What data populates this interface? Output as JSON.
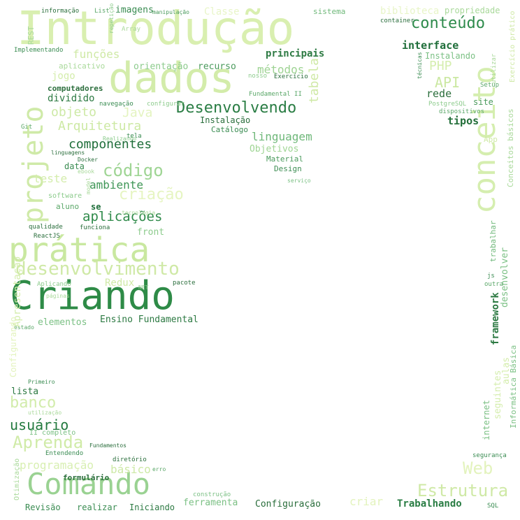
{
  "words": [
    {
      "text": "Introdução",
      "color": "#d9efb0"
    },
    {
      "text": "dados",
      "color": "#d3ecaa"
    },
    {
      "text": "Criando",
      "color": "#2e8b47"
    },
    {
      "text": "prática",
      "color": "#c9e8a0"
    },
    {
      "text": "Comando",
      "color": "#9ad292"
    },
    {
      "text": "projeto",
      "color": "#cfeaa8"
    },
    {
      "text": "conceito",
      "color": "#d5eeaf"
    },
    {
      "text": "desenvolvimento",
      "color": "#cfe9a6"
    },
    {
      "text": "Desenvolvendo",
      "color": "#2a7d44"
    },
    {
      "text": "código",
      "color": "#9fd594"
    },
    {
      "text": "conteúdo",
      "color": "#2e8b4c"
    },
    {
      "text": "banco",
      "color": "#d2ecab"
    },
    {
      "text": "Aprenda",
      "color": "#d0eba8"
    },
    {
      "text": "Estrutura",
      "color": "#cfe9a6"
    },
    {
      "text": "Web",
      "color": "#e3f3bd"
    },
    {
      "text": "usuário",
      "color": "#237a3f"
    },
    {
      "text": "criação",
      "color": "#e6f5c2"
    },
    {
      "text": "aplicações",
      "color": "#2f8a4a"
    },
    {
      "text": "componentes",
      "color": "#1f6e3a"
    },
    {
      "text": "ambiente",
      "color": "#3f9657"
    },
    {
      "text": "Arquitetura",
      "color": "#cde9a4"
    },
    {
      "text": "objeto",
      "color": "#cde9a6"
    },
    {
      "text": "Java",
      "color": "#e4f4c0"
    },
    {
      "text": "funções",
      "color": "#cfe9a6"
    },
    {
      "text": "métodos",
      "color": "#9ed393"
    },
    {
      "text": "linguagem",
      "color": "#6fb87a"
    },
    {
      "text": "interface",
      "color": "#1f6e3a"
    },
    {
      "text": "API",
      "color": "#cbe8a2"
    },
    {
      "text": "PHP",
      "color": "#d5eeaf"
    },
    {
      "text": "tipos",
      "color": "#236f3a"
    },
    {
      "text": "rede",
      "color": "#2b6e3c"
    },
    {
      "text": "site",
      "color": "#4a9a5c"
    },
    {
      "text": "principais",
      "color": "#2e7b44"
    },
    {
      "text": "recurso",
      "color": "#4a9a5c"
    },
    {
      "text": "orientação",
      "color": "#8ccb8c"
    },
    {
      "text": "aplicativo",
      "color": "#a9d99a"
    },
    {
      "text": "jogo",
      "color": "#d4edac"
    },
    {
      "text": "computadores",
      "color": "#2d6f3e"
    },
    {
      "text": "dividido",
      "color": "#2d7a43"
    },
    {
      "text": "Instalação",
      "color": "#2a6e3c"
    },
    {
      "text": "Catálogo",
      "color": "#3a8c52"
    },
    {
      "text": "Objetivos",
      "color": "#9fd594"
    },
    {
      "text": "Material",
      "color": "#4a9a5c"
    },
    {
      "text": "Design",
      "color": "#3f8f55"
    },
    {
      "text": "teste",
      "color": "#d4edac"
    },
    {
      "text": "data",
      "color": "#3a8c52"
    },
    {
      "text": "aluno",
      "color": "#5aa768"
    },
    {
      "text": "se",
      "color": "#1f6e3a"
    },
    {
      "text": "front",
      "color": "#8ccb8c"
    },
    {
      "text": "Redux",
      "color": "#cfe9a6"
    },
    {
      "text": "elementos",
      "color": "#7bc084"
    },
    {
      "text": "Ensino Fundamental",
      "color": "#2d7a43"
    },
    {
      "text": "lista",
      "color": "#2d7a43"
    },
    {
      "text": "programação",
      "color": "#d8efb2"
    },
    {
      "text": "básico",
      "color": "#cde9a6"
    },
    {
      "text": "formulário",
      "color": "#2a6e3c"
    },
    {
      "text": "Revisão",
      "color": "#3a8c52"
    },
    {
      "text": "realizar",
      "color": "#3a8c52"
    },
    {
      "text": "Iniciando",
      "color": "#2d7a43"
    },
    {
      "text": "ferramenta",
      "color": "#7bc084"
    },
    {
      "text": "Configuração",
      "color": "#2a6e3c"
    },
    {
      "text": "criar",
      "color": "#e3f3bd"
    },
    {
      "text": "Trabalhando",
      "color": "#2a7d44"
    },
    {
      "text": "imagens",
      "color": "#3a8c52"
    },
    {
      "text": "sistema",
      "color": "#6fb87a"
    },
    {
      "text": "biblioteca",
      "color": "#e8f5c8"
    },
    {
      "text": "propriedade",
      "color": "#a9d99a"
    },
    {
      "text": "tabela",
      "color": "#cfe9a6"
    },
    {
      "text": "framework",
      "color": "#2d7a43"
    },
    {
      "text": "desenvolver",
      "color": "#7bc084"
    },
    {
      "text": "trabalhar",
      "color": "#6fb87a"
    },
    {
      "text": "internet",
      "color": "#7bc084"
    },
    {
      "text": "seguintes",
      "color": "#d4edac"
    },
    {
      "text": "aulas",
      "color": "#d4edac"
    },
    {
      "text": "Informática Básica",
      "color": "#7bc084"
    },
    {
      "text": "Conceitos básicos",
      "color": "#a9d99a"
    },
    {
      "text": "Exercício prático",
      "color": "#cfe9a6"
    },
    {
      "text": "Classe",
      "color": "#e8f5c8"
    },
    {
      "text": "REST",
      "color": "#a9d99a"
    },
    {
      "text": "Implementando",
      "color": "#3a8c52"
    },
    {
      "text": "informação",
      "color": "#2a6e3c"
    },
    {
      "text": "List",
      "color": "#5aa768"
    },
    {
      "text": "Array",
      "color": "#a9d99a"
    },
    {
      "text": "manipulação",
      "color": "#4a9a5c"
    },
    {
      "text": "Instalando",
      "color": "#7bc084"
    },
    {
      "text": "Fundamental II",
      "color": "#5aa768"
    },
    {
      "text": "nosso",
      "color": "#8ccb8c"
    },
    {
      "text": "Exercício",
      "color": "#2a6e3c"
    },
    {
      "text": "Setup",
      "color": "#5aa768"
    },
    {
      "text": "PostgreSQL",
      "color": "#8ccb8c"
    },
    {
      "text": "dispositivos",
      "color": "#5aa768"
    },
    {
      "text": "container",
      "color": "#2a6e3c"
    },
    {
      "text": "técnicas",
      "color": "#3a8c52"
    },
    {
      "text": "utilizar",
      "color": "#a9d99a"
    },
    {
      "text": "App",
      "color": "#cfe9a6"
    },
    {
      "text": "tela",
      "color": "#3a8c52"
    },
    {
      "text": "navegação",
      "color": "#3a8c52"
    },
    {
      "text": "configurar",
      "color": "#8ccb8c"
    },
    {
      "text": "Realizando",
      "color": "#8ccb8c"
    },
    {
      "text": "Git",
      "color": "#5aa768"
    },
    {
      "text": "linguagens",
      "color": "#2a6e3c"
    },
    {
      "text": "Docker",
      "color": "#2a6e3c"
    },
    {
      "text": "ebook",
      "color": "#a9d99a"
    },
    {
      "text": "model",
      "color": "#a9d99a"
    },
    {
      "text": "software",
      "color": "#8ccb8c"
    },
    {
      "text": "tecnologia",
      "color": "#a9d99a"
    },
    {
      "text": "qualidade",
      "color": "#2a6e3c"
    },
    {
      "text": "funciona",
      "color": "#2a6e3c"
    },
    {
      "text": "ReactJS",
      "color": "#2a6e3c"
    },
    {
      "text": "Aplicando",
      "color": "#8ccb8c"
    },
    {
      "text": "páginas",
      "color": "#a9d99a"
    },
    {
      "text": "NET",
      "color": "#8ccb8c"
    },
    {
      "text": "pacote",
      "color": "#2a6e3c"
    },
    {
      "text": "estado",
      "color": "#5aa768"
    },
    {
      "text": "Primeiro",
      "color": "#3a8c52"
    },
    {
      "text": "utilização",
      "color": "#a9d99a"
    },
    {
      "text": "II completo",
      "color": "#7bc084"
    },
    {
      "text": "Fundamentos",
      "color": "#2a6e3c"
    },
    {
      "text": "Entendendo",
      "color": "#3a8c52"
    },
    {
      "text": "diretório",
      "color": "#2a6e3c"
    },
    {
      "text": "erro",
      "color": "#5aa768"
    },
    {
      "text": "segurança",
      "color": "#3a8c52"
    },
    {
      "text": "construção",
      "color": "#7bc084"
    },
    {
      "text": "SQL",
      "color": "#3a8c52"
    },
    {
      "text": "serviço",
      "color": "#7bc084"
    },
    {
      "text": "outra",
      "color": "#5aa768"
    },
    {
      "text": "js",
      "color": "#3a8c52"
    },
    {
      "text": "Otimização",
      "color": "#a9d99a"
    },
    {
      "text": "Apresentação",
      "color": "#d4edac"
    },
    {
      "text": "Configurando",
      "color": "#e3f3bd"
    },
    {
      "text": "repetição",
      "color": "#8ccb8c"
    }
  ]
}
